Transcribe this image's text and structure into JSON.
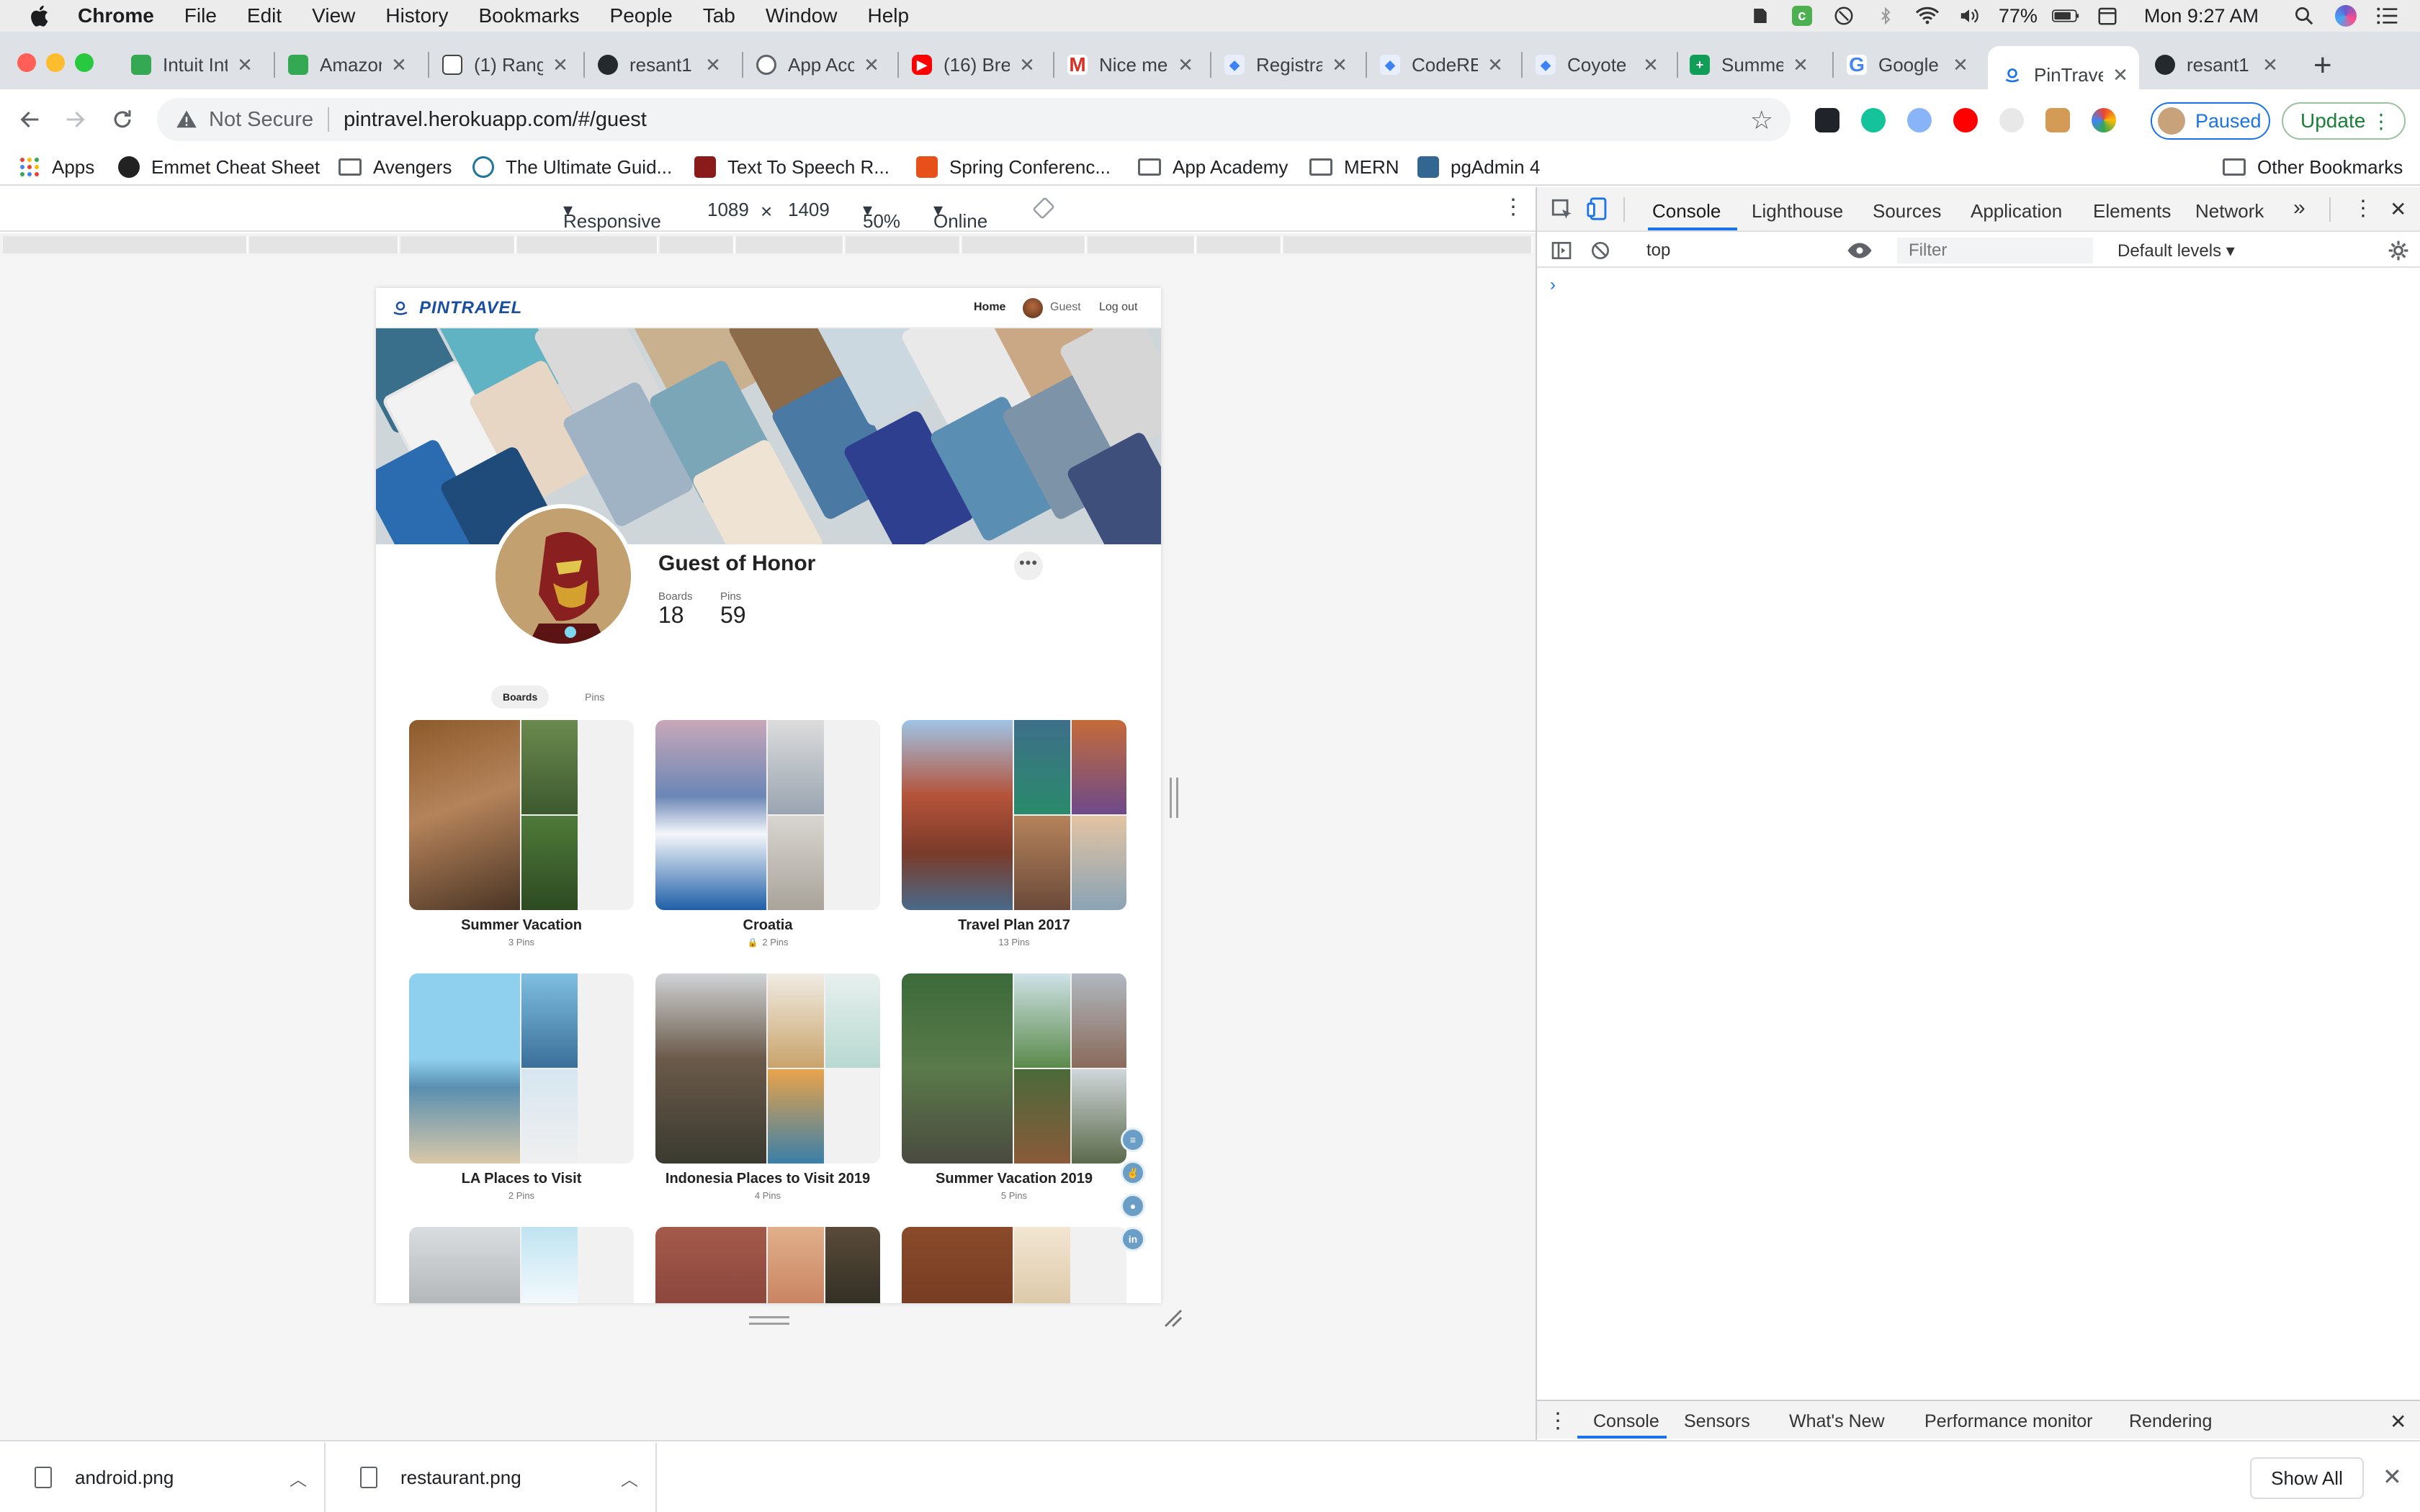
{
  "menubar": {
    "app": "Chrome",
    "items": [
      "File",
      "Edit",
      "View",
      "History",
      "Bookmarks",
      "People",
      "Tab",
      "Window",
      "Help"
    ],
    "battery": "77%",
    "clock": "Mon 9:27 AM"
  },
  "tabs": [
    {
      "title": "Intuit Int",
      "icon": "doc-icon",
      "color": "#34a853"
    },
    {
      "title": "Amazon",
      "icon": "doc-icon",
      "color": "#34a853"
    },
    {
      "title": "(1) Rang",
      "icon": "ranger-icon",
      "color": "#444444"
    },
    {
      "title": "resant1",
      "icon": "github-icon",
      "color": "#24292e"
    },
    {
      "title": "App Acc",
      "icon": "globe-icon",
      "color": "#5f6368"
    },
    {
      "title": "(16) Bre",
      "icon": "youtube-icon",
      "color": "#ff0000"
    },
    {
      "title": "Nice me",
      "icon": "gmail-icon",
      "color": "#d93025"
    },
    {
      "title": "Registra",
      "icon": "codepen-icon",
      "color": "#3b82f6"
    },
    {
      "title": "CodeRE",
      "icon": "codepen-icon",
      "color": "#3b82f6"
    },
    {
      "title": "Coyote",
      "icon": "codepen-icon",
      "color": "#3b82f6"
    },
    {
      "title": "Summe",
      "icon": "sheets-icon",
      "color": "#0f9d58"
    },
    {
      "title": "Google",
      "icon": "google-icon",
      "color": "#4285f4"
    },
    {
      "title": "PinTrave",
      "icon": "pintravel-icon",
      "color": "#1a73e8",
      "active": true
    },
    {
      "title": "resant1",
      "icon": "github-icon",
      "color": "#24292e"
    }
  ],
  "toolbar": {
    "security": "Not Secure",
    "url": "pintravel.herokuapp.com/#/guest",
    "paused": "Paused",
    "update": "Update"
  },
  "bookmarks": [
    {
      "label": "Apps",
      "kind": "apps"
    },
    {
      "label": "Emmet Cheat Sheet",
      "kind": "site",
      "color": "#222222"
    },
    {
      "label": "Avengers",
      "kind": "folder"
    },
    {
      "label": "The Ultimate Guid...",
      "kind": "site",
      "color": "#21759b"
    },
    {
      "label": "Text To Speech R...",
      "kind": "site",
      "color": "#8b1a1a"
    },
    {
      "label": "Spring Conferenc...",
      "kind": "site",
      "color": "#e8501a"
    },
    {
      "label": "App Academy",
      "kind": "folder"
    },
    {
      "label": "MERN",
      "kind": "folder"
    },
    {
      "label": "pgAdmin 4",
      "kind": "site",
      "color": "#336791"
    },
    {
      "label": "Other Bookmarks",
      "kind": "folder"
    }
  ],
  "device": {
    "mode": "Responsive",
    "width": "1089",
    "height": "1409",
    "zoom": "50%",
    "network": "Online"
  },
  "site": {
    "logo": "PINTRAVEL",
    "nav": {
      "home": "Home",
      "user": "Guest",
      "logout": "Log out"
    },
    "profile": {
      "name": "Guest of Honor",
      "boards_label": "Boards",
      "boards_value": "18",
      "pins_label": "Pins",
      "pins_value": "59"
    },
    "subtabs": {
      "boards": "Boards",
      "pins": "Pins"
    },
    "boards": [
      {
        "title": "Summer Vacation",
        "count": "3 Pins"
      },
      {
        "title": "Croatia",
        "count": "2 Pins",
        "locked": true
      },
      {
        "title": "Travel Plan 2017",
        "count": "13 Pins"
      },
      {
        "title": "LA Places to Visit",
        "count": "2 Pins"
      },
      {
        "title": "Indonesia Places to Visit 2019",
        "count": "4 Pins"
      },
      {
        "title": "Summer Vacation 2019",
        "count": "5 Pins"
      },
      {
        "title": "",
        "count": ""
      },
      {
        "title": "",
        "count": ""
      },
      {
        "title": "",
        "count": ""
      }
    ]
  },
  "devtools": {
    "tabs": [
      "Console",
      "Lighthouse",
      "Sources",
      "Application",
      "Elements",
      "Network"
    ],
    "context": "top",
    "filter_placeholder": "Filter",
    "levels": "Default levels",
    "drawer_tabs": [
      "Console",
      "Sensors",
      "What's New",
      "Performance monitor",
      "Rendering"
    ]
  },
  "downloads": {
    "files": [
      "android.png",
      "restaurant.png"
    ],
    "show_all": "Show All"
  }
}
